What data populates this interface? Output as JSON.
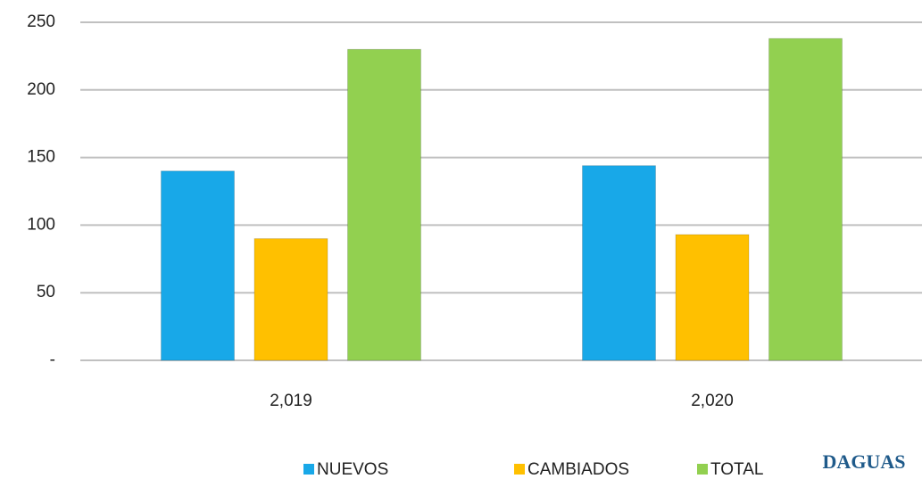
{
  "chart_data": {
    "type": "bar",
    "categories": [
      "2,019",
      "2,020"
    ],
    "series": [
      {
        "name": "NUEVOS",
        "color": "#18a8e8",
        "values": [
          140,
          144
        ]
      },
      {
        "name": "CAMBIADOS",
        "color": "#ffc000",
        "values": [
          90,
          93
        ]
      },
      {
        "name": "TOTAL",
        "color": "#92d050",
        "values": [
          230,
          238
        ]
      }
    ],
    "ylim": [
      0,
      250
    ],
    "yticks": [
      {
        "value": 0,
        "label": "-"
      },
      50,
      100,
      150,
      200,
      250
    ],
    "grid": true,
    "legend": "bottom",
    "logo": "DAGUAS"
  }
}
